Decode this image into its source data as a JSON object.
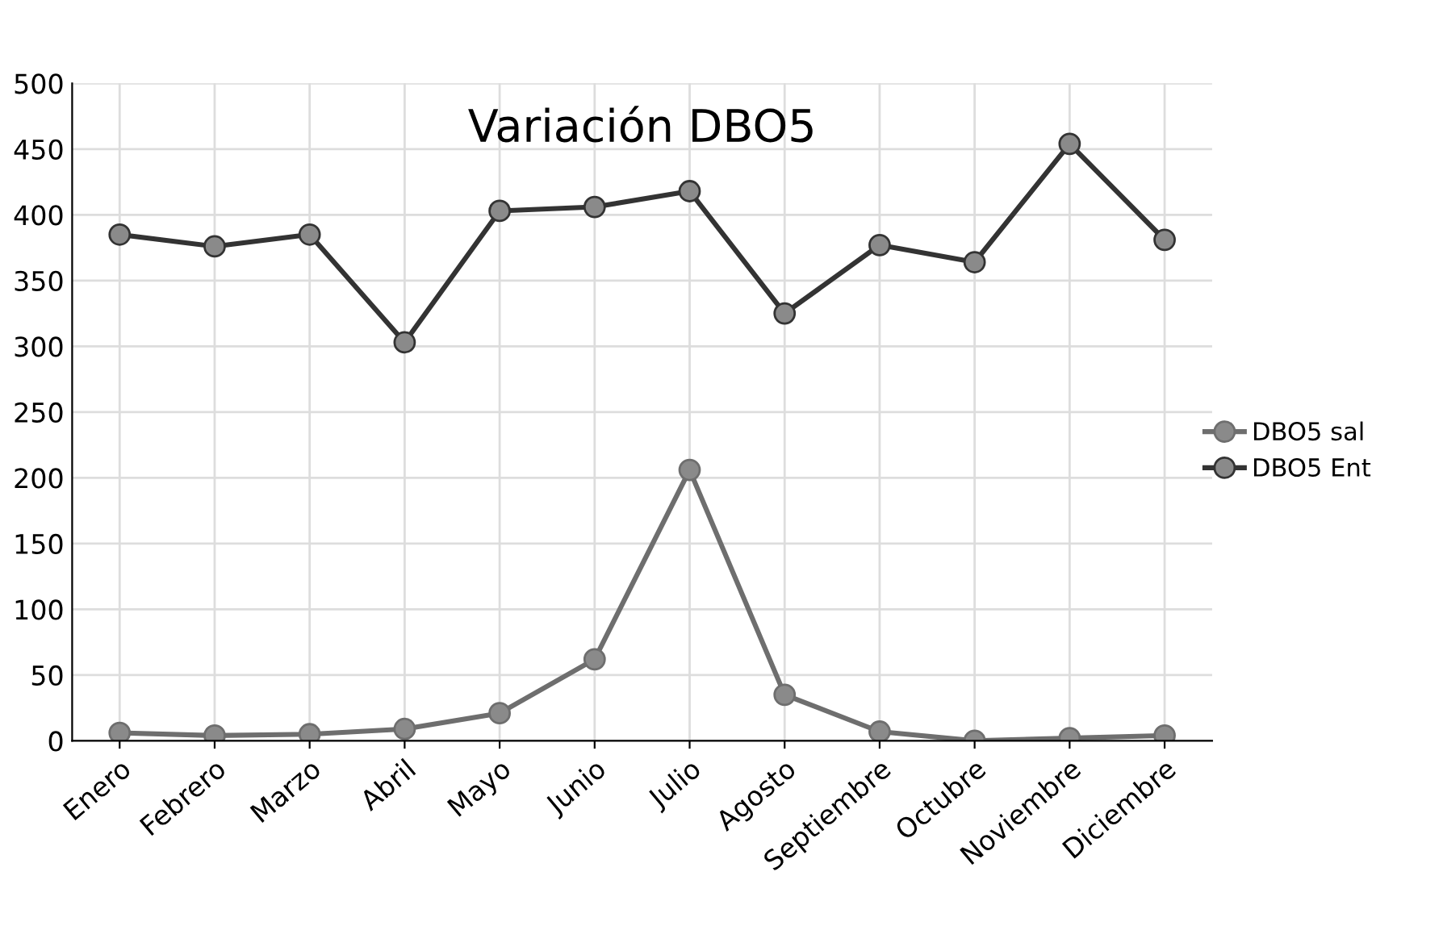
{
  "chart_data": {
    "type": "line",
    "title": "Variación DBO5",
    "categories": [
      "Enero",
      "Febrero",
      "Marzo",
      "Abril",
      "Mayo",
      "Junio",
      "Julio",
      "Agosto",
      "Septiembre",
      "Octubre",
      "Noviembre",
      "Diciembre"
    ],
    "series": [
      {
        "name": "DBO5 sal",
        "color": "#6e6e6e",
        "values": [
          6,
          4,
          5,
          9,
          21,
          62,
          206,
          35,
          7,
          0,
          2,
          4
        ]
      },
      {
        "name": "DBO5 Ent",
        "color": "#333333",
        "values": [
          385,
          376,
          385,
          303,
          403,
          406,
          418,
          325,
          377,
          364,
          454,
          381
        ]
      }
    ],
    "ylim": [
      0,
      500
    ],
    "yticks": [
      0,
      50,
      100,
      150,
      200,
      250,
      300,
      350,
      400,
      450,
      500
    ],
    "grid": true,
    "legend": "right",
    "marker": "circle",
    "line_style": "solid"
  }
}
